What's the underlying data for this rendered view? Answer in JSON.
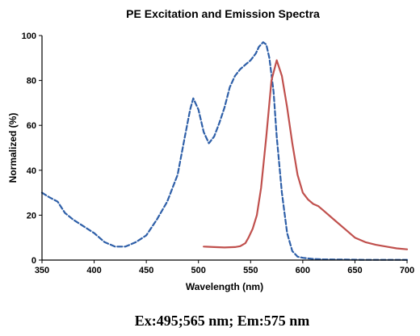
{
  "chart_data": {
    "type": "line",
    "title": "PE Excitation and Emission Spectra",
    "xlabel": "Wavelength (nm)",
    "ylabel": "Normalized (%)",
    "xlim": [
      350,
      700
    ],
    "ylim": [
      0,
      100
    ],
    "xticks": [
      350,
      400,
      450,
      500,
      550,
      600,
      650,
      700
    ],
    "yticks": [
      0,
      20,
      40,
      60,
      80,
      100
    ],
    "grid": false,
    "legend": "none",
    "series": [
      {
        "role": "excitation",
        "color": "#2E5FA8",
        "dash": "dashed",
        "x": [
          350,
          357,
          365,
          372,
          380,
          390,
          400,
          410,
          420,
          430,
          440,
          450,
          460,
          470,
          480,
          487,
          492,
          495,
          500,
          505,
          510,
          515,
          520,
          525,
          530,
          535,
          540,
          545,
          550,
          555,
          558,
          562,
          565,
          568,
          572,
          575,
          580,
          585,
          590,
          595,
          600,
          610,
          620,
          640,
          660,
          680,
          700
        ],
        "y": [
          30,
          28,
          26,
          21,
          18,
          15,
          12,
          8,
          6,
          6,
          8,
          11,
          18,
          26,
          38,
          55,
          67,
          72,
          67,
          57,
          52,
          55,
          61,
          68,
          77,
          82,
          85,
          87,
          89,
          92,
          95,
          97,
          96,
          90,
          75,
          55,
          30,
          12,
          4,
          1.5,
          1,
          0.5,
          0.3,
          0.2,
          0.1,
          0.1,
          0.1
        ]
      },
      {
        "role": "emission",
        "color": "#C0504D",
        "dash": "solid",
        "x": [
          505,
          515,
          525,
          535,
          540,
          545,
          548,
          552,
          556,
          560,
          565,
          570,
          575,
          580,
          585,
          590,
          595,
          600,
          605,
          610,
          615,
          620,
          630,
          640,
          650,
          660,
          670,
          680,
          690,
          700
        ],
        "y": [
          6,
          5.8,
          5.6,
          5.8,
          6.2,
          7.5,
          10,
          14,
          20,
          32,
          55,
          80,
          89,
          82,
          68,
          52,
          38,
          30,
          27,
          25,
          24,
          22,
          18,
          14,
          10,
          8,
          6.8,
          6,
          5.2,
          4.8
        ]
      }
    ]
  },
  "caption": "Ex:495;565 nm; Em:575 nm"
}
